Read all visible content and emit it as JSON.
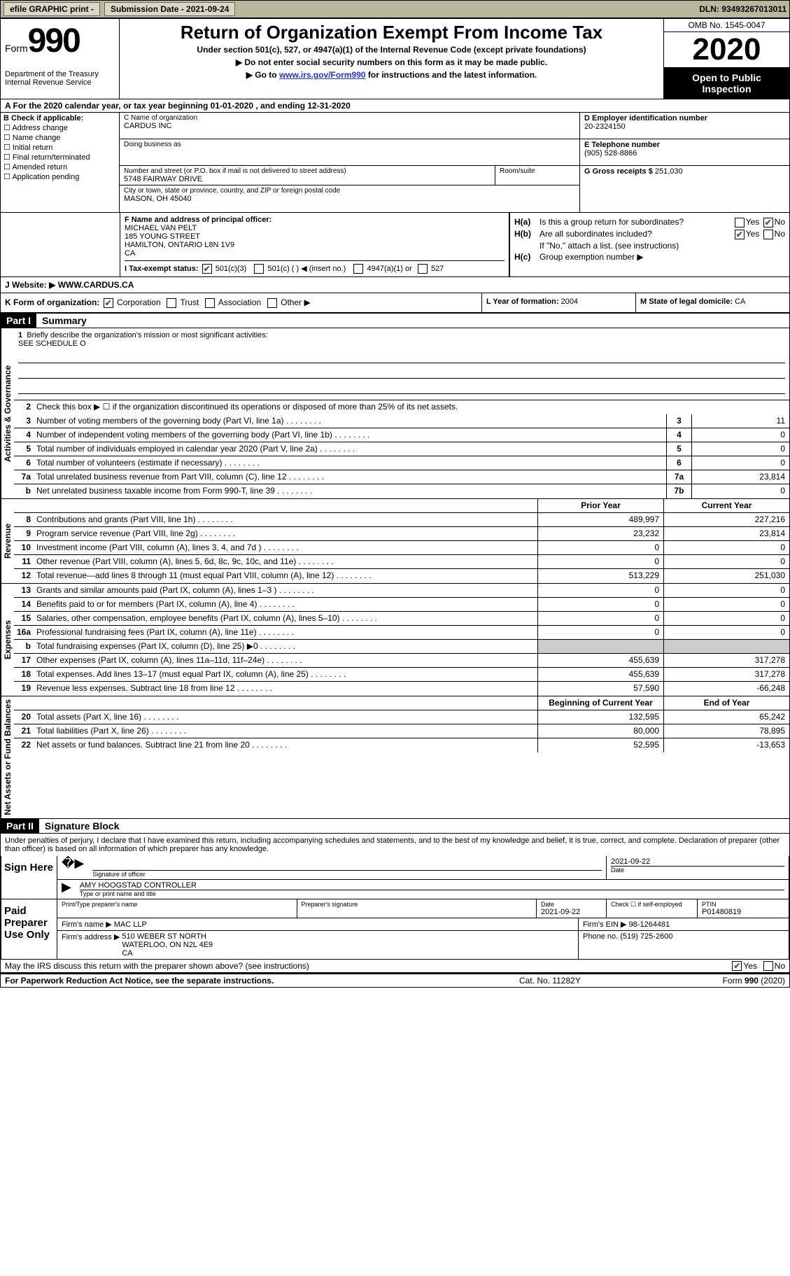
{
  "topbar": {
    "efile": "efile GRAPHIC print -",
    "submission": "Submission Date - 2021-09-24",
    "dln_label": "DLN:",
    "dln": "93493267013011"
  },
  "header": {
    "form_word": "Form",
    "form_num": "990",
    "dept": "Department of the Treasury\nInternal Revenue Service",
    "title": "Return of Organization Exempt From Income Tax",
    "sub1": "Under section 501(c), 527, or 4947(a)(1) of the Internal Revenue Code (except private foundations)",
    "sub2": "Do not enter social security numbers on this form as it may be made public.",
    "sub3_a": "Go to ",
    "sub3_link": "www.irs.gov/Form990",
    "sub3_b": " for instructions and the latest information.",
    "omb": "OMB No. 1545-0047",
    "year": "2020",
    "inspect": "Open to Public Inspection"
  },
  "rowA": "A For the 2020 calendar year, or tax year beginning 01-01-2020    , and ending 12-31-2020",
  "colB": {
    "hdr": "B Check if applicable:",
    "items": [
      "Address change",
      "Name change",
      "Initial return",
      "Final return/terminated",
      "Amended return",
      "Application pending"
    ]
  },
  "colC": {
    "name_lbl": "C Name of organization",
    "name": "CARDUS INC",
    "dba_lbl": "Doing business as",
    "dba": "",
    "addr_lbl": "Number and street (or P.O. box if mail is not delivered to street address)",
    "room_lbl": "Room/suite",
    "addr": "5748 FAIRWAY DRIVE",
    "city_lbl": "City or town, state or province, country, and ZIP or foreign postal code",
    "city": "MASON, OH   45040"
  },
  "colD": {
    "ein_lbl": "D Employer identification number",
    "ein": "20-2324150",
    "phone_lbl": "E Telephone number",
    "phone": "(905) 528-8866",
    "gross_lbl": "G Gross receipts $",
    "gross": "251,030"
  },
  "colF": {
    "lbl": "F Name and address of principal officer:",
    "l1": "MICHAEL VAN PELT",
    "l2": "185 YOUNG STREET",
    "l3": "HAMILTON, ONTARIO  L8N 1V9",
    "l4": "CA"
  },
  "colH": {
    "ha_lbl": "H(a)",
    "ha_txt": "Is this a group return for subordinates?",
    "hb_lbl": "H(b)",
    "hb_txt": "Are all subordinates included?",
    "note": "If \"No,\" attach a list. (see instructions)",
    "hc_lbl": "H(c)",
    "hc_txt": "Group exemption number ▶",
    "yes": "Yes",
    "no": "No"
  },
  "rowI": {
    "lbl": "I   Tax-exempt status:",
    "o1": "501(c)(3)",
    "o2": "501(c) (  ) ◀ (insert no.)",
    "o3": "4947(a)(1) or",
    "o4": "527"
  },
  "rowJ": {
    "lbl": "J   Website: ▶",
    "val": "WWW.CARDUS.CA"
  },
  "rowK": {
    "lbl": "K Form of organization:",
    "o1": "Corporation",
    "o2": "Trust",
    "o3": "Association",
    "o4": "Other ▶"
  },
  "rowL": {
    "lbl": "L Year of formation:",
    "val": "2004"
  },
  "rowM": {
    "lbl": "M State of legal domicile:",
    "val": "CA"
  },
  "partI": {
    "hdr": "Part I",
    "title": "Summary"
  },
  "summary": {
    "tab_ag": "Activities & Governance",
    "tab_rev": "Revenue",
    "tab_exp": "Expenses",
    "tab_net": "Net Assets or Fund Balances",
    "l1_lbl": "Briefly describe the organization's mission or most significant activities:",
    "l1_val": "SEE SCHEDULE O",
    "l2_lbl": "Check this box ▶ ☐  if the organization discontinued its operations or disposed of more than 25% of its net assets.",
    "lines_ag": [
      {
        "n": "3",
        "t": "Number of voting members of the governing body (Part VI, line 1a)",
        "b": "3",
        "v": "11"
      },
      {
        "n": "4",
        "t": "Number of independent voting members of the governing body (Part VI, line 1b)",
        "b": "4",
        "v": "0"
      },
      {
        "n": "5",
        "t": "Total number of individuals employed in calendar year 2020 (Part V, line 2a)",
        "b": "5",
        "v": "0"
      },
      {
        "n": "6",
        "t": "Total number of volunteers (estimate if necessary)",
        "b": "6",
        "v": "0"
      },
      {
        "n": "7a",
        "t": "Total unrelated business revenue from Part VIII, column (C), line 12",
        "b": "7a",
        "v": "23,814"
      },
      {
        "n": "b",
        "t": "Net unrelated business taxable income from Form 990-T, line 39",
        "b": "7b",
        "v": "0"
      }
    ],
    "col_py": "Prior Year",
    "col_cy": "Current Year",
    "lines_rev": [
      {
        "n": "8",
        "t": "Contributions and grants (Part VIII, line 1h)",
        "p": "489,997",
        "c": "227,216"
      },
      {
        "n": "9",
        "t": "Program service revenue (Part VIII, line 2g)",
        "p": "23,232",
        "c": "23,814"
      },
      {
        "n": "10",
        "t": "Investment income (Part VIII, column (A), lines 3, 4, and 7d )",
        "p": "0",
        "c": "0"
      },
      {
        "n": "11",
        "t": "Other revenue (Part VIII, column (A), lines 5, 6d, 8c, 9c, 10c, and 11e)",
        "p": "0",
        "c": "0"
      },
      {
        "n": "12",
        "t": "Total revenue—add lines 8 through 11 (must equal Part VIII, column (A), line 12)",
        "p": "513,229",
        "c": "251,030"
      }
    ],
    "lines_exp": [
      {
        "n": "13",
        "t": "Grants and similar amounts paid (Part IX, column (A), lines 1–3 )",
        "p": "0",
        "c": "0"
      },
      {
        "n": "14",
        "t": "Benefits paid to or for members (Part IX, column (A), line 4)",
        "p": "0",
        "c": "0"
      },
      {
        "n": "15",
        "t": "Salaries, other compensation, employee benefits (Part IX, column (A), lines 5–10)",
        "p": "0",
        "c": "0"
      },
      {
        "n": "16a",
        "t": "Professional fundraising fees (Part IX, column (A), line 11e)",
        "p": "0",
        "c": "0"
      },
      {
        "n": "b",
        "t": "Total fundraising expenses (Part IX, column (D), line 25) ▶0",
        "p": "",
        "c": "",
        "shade": true
      },
      {
        "n": "17",
        "t": "Other expenses (Part IX, column (A), lines 11a–11d, 11f–24e)",
        "p": "455,639",
        "c": "317,278"
      },
      {
        "n": "18",
        "t": "Total expenses. Add lines 13–17 (must equal Part IX, column (A), line 25)",
        "p": "455,639",
        "c": "317,278"
      },
      {
        "n": "19",
        "t": "Revenue less expenses. Subtract line 18 from line 12",
        "p": "57,590",
        "c": "-66,248"
      }
    ],
    "col_boy": "Beginning of Current Year",
    "col_eoy": "End of Year",
    "lines_net": [
      {
        "n": "20",
        "t": "Total assets (Part X, line 16)",
        "p": "132,595",
        "c": "65,242"
      },
      {
        "n": "21",
        "t": "Total liabilities (Part X, line 26)",
        "p": "80,000",
        "c": "78,895"
      },
      {
        "n": "22",
        "t": "Net assets or fund balances. Subtract line 21 from line 20",
        "p": "52,595",
        "c": "-13,653"
      }
    ]
  },
  "partII": {
    "hdr": "Part II",
    "title": "Signature Block"
  },
  "sig": {
    "penalties": "Under penalties of perjury, I declare that I have examined this return, including accompanying schedules and statements, and to the best of my knowledge and belief, it is true, correct, and complete. Declaration of preparer (other than officer) is based on all information of which preparer has any knowledge.",
    "sign_here": "Sign Here",
    "sig_officer_lbl": "Signature of officer",
    "sig_date": "2021-09-22",
    "sig_date_lbl": "Date",
    "sig_name": "AMY HOOGSTAD CONTROLLER",
    "sig_name_lbl": "Type or print name and title",
    "paid": "Paid Preparer Use Only",
    "prep_name_lbl": "Print/Type preparer's name",
    "prep_sig_lbl": "Preparer's signature",
    "prep_date_lbl": "Date",
    "prep_date": "2021-09-22",
    "prep_se_lbl": "Check ☐ if self-employed",
    "ptin_lbl": "PTIN",
    "ptin": "P01480819",
    "firm_name_lbl": "Firm's name    ▶",
    "firm_name": "MAC LLP",
    "firm_ein_lbl": "Firm's EIN ▶",
    "firm_ein": "98-1264481",
    "firm_addr_lbl": "Firm's address ▶",
    "firm_addr": "510 WEBER ST NORTH\nWATERLOO, ON  N2L 4E9\nCA",
    "firm_phone_lbl": "Phone no.",
    "firm_phone": "(519) 725-2600",
    "discuss": "May the IRS discuss this return with the preparer shown above? (see instructions)",
    "yes": "Yes",
    "no": "No"
  },
  "footer": {
    "f1": "For Paperwork Reduction Act Notice, see the separate instructions.",
    "f2": "Cat. No. 11282Y",
    "f3a": "Form ",
    "f3b": "990",
    "f3c": " (2020)"
  }
}
